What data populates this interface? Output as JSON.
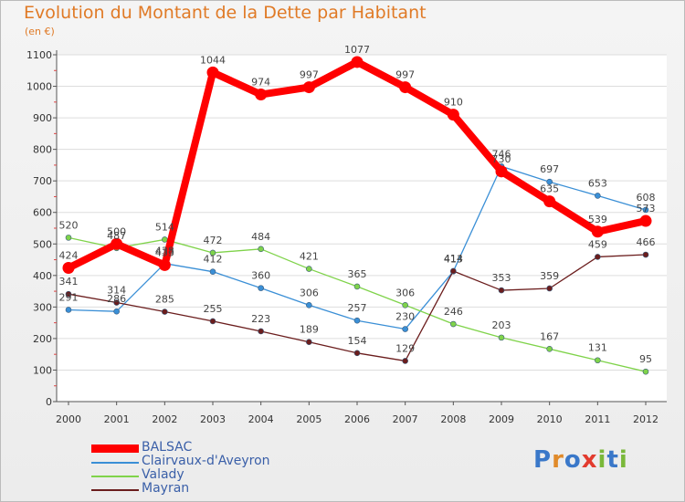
{
  "title": "Evolution du Montant de la Dette par Habitant",
  "unit_label": "(en €)",
  "logo": {
    "text": "Proxiti",
    "colors": [
      "#3a78c9",
      "#e08a2a",
      "#3a78c9",
      "#e23b2e",
      "#7ab83a",
      "#3a78c9",
      "#7ab83a"
    ]
  },
  "chart_data": {
    "type": "line",
    "title": "Evolution du Montant de la Dette par Habitant",
    "ylabel": "(en €)",
    "xlabel": "",
    "x": [
      "2000",
      "2001",
      "2002",
      "2003",
      "2004",
      "2005",
      "2006",
      "2007",
      "2008",
      "2009",
      "2010",
      "2011",
      "2012"
    ],
    "ylim": [
      0,
      1100
    ],
    "yticks": [
      0,
      100,
      200,
      300,
      400,
      500,
      600,
      700,
      800,
      900,
      1000,
      1100
    ],
    "grid": "horizontal",
    "legend_position": "bottom-left",
    "series": [
      {
        "name": "BALSAC",
        "color": "#ff0000",
        "values": [
          424,
          500,
          433,
          1044,
          974,
          997,
          1077,
          997,
          910,
          730,
          635,
          539,
          573
        ],
        "labels": [
          "424",
          "500",
          "433",
          "1044",
          "974",
          "997",
          "1077",
          "997",
          "910",
          "730",
          "635",
          "539",
          "573"
        ]
      },
      {
        "name": "Clairvaux-d'Aveyron",
        "color": "#3a8fd6",
        "values": [
          291,
          286,
          438,
          412,
          360,
          306,
          257,
          230,
          413,
          746,
          697,
          653,
          608
        ],
        "labels": [
          "291",
          "286",
          "438",
          "412",
          "360",
          "306",
          "257",
          "230",
          "413",
          "746",
          "697",
          "653",
          "608"
        ]
      },
      {
        "name": "Valady",
        "color": "#7fd34a",
        "values": [
          520,
          487,
          514,
          472,
          484,
          421,
          365,
          306,
          246,
          203,
          167,
          131,
          95
        ],
        "labels": [
          "520",
          "487",
          "514",
          "472",
          "484",
          "421",
          "365",
          "306",
          "246",
          "203",
          "167",
          "131",
          "95"
        ]
      },
      {
        "name": "Mayran",
        "color": "#6b1d1d",
        "values": [
          341,
          314,
          285,
          255,
          223,
          189,
          154,
          129,
          414,
          353,
          359,
          459,
          466
        ],
        "labels": [
          "341",
          "314",
          "285",
          "255",
          "223",
          "189",
          "154",
          "129",
          "414",
          "353",
          "359",
          "459",
          "466"
        ]
      }
    ]
  }
}
